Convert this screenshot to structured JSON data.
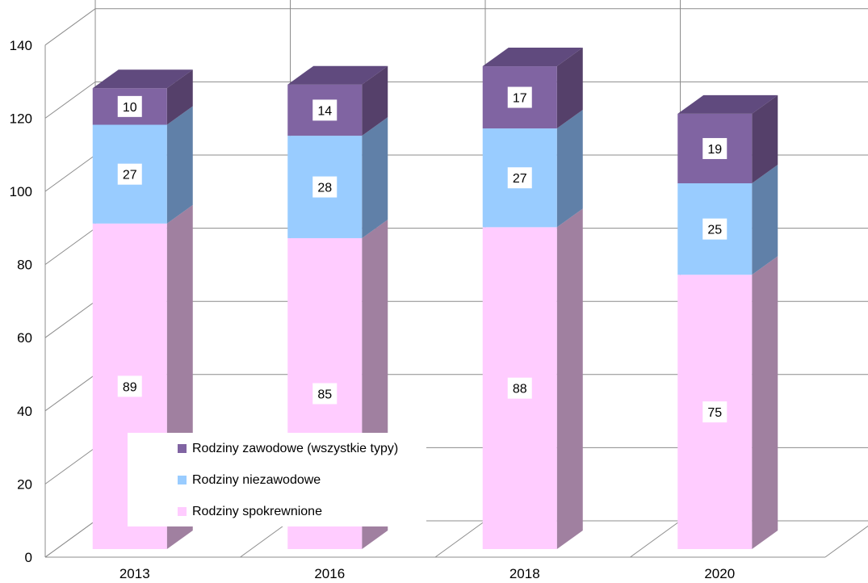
{
  "chart_data": {
    "type": "bar",
    "stacked": true,
    "three_d": true,
    "categories": [
      "2013",
      "2016",
      "2018",
      "2020"
    ],
    "series": [
      {
        "name": "Rodziny spokrewnione",
        "values": [
          89,
          85,
          88,
          75
        ],
        "color": "#FFCCFF",
        "side_color": "#A080A0",
        "top_color": "#7A5A8A"
      },
      {
        "name": "Rodziny niezawodowe",
        "values": [
          27,
          28,
          27,
          25
        ],
        "color": "#99CCFF",
        "side_color": "#6080A8",
        "top_color": "#5A7AA0"
      },
      {
        "name": "Rodziny zawodowe (wszystkie typy)",
        "values": [
          10,
          14,
          17,
          19
        ],
        "color": "#8064A2",
        "side_color": "#55406A",
        "top_color": "#604A7E"
      }
    ],
    "ylim": [
      0,
      140
    ],
    "yticks": [
      "0",
      "20",
      "40",
      "60",
      "80",
      "100",
      "120",
      "140"
    ],
    "grid": true,
    "legend": "lower-left"
  }
}
